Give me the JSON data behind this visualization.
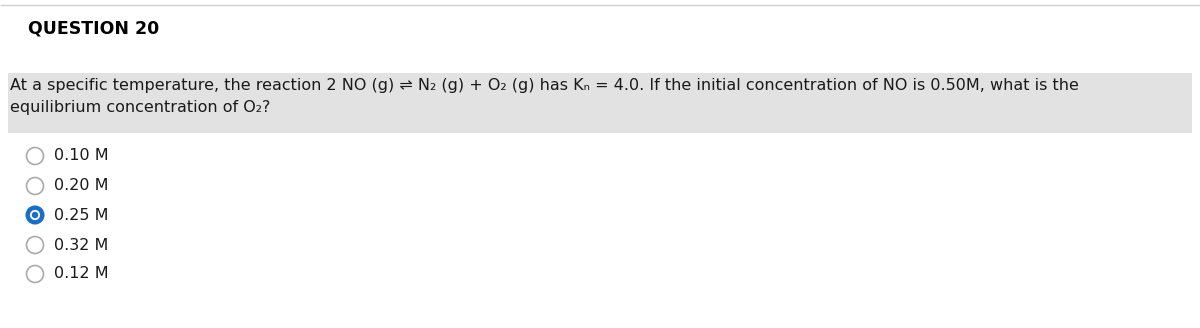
{
  "title": "QUESTION 20",
  "question_line1": "At a specific temperature, the reaction 2 NO (g) ⇌ N₂ (g) + O₂ (g) has Kₙ = 4.0. If the initial concentration of NO is 0.50M, what is the",
  "question_line2": "equilibrium concentration of O₂?",
  "options": [
    "0.10 M",
    "0.20 M",
    "0.25 M",
    "0.32 M",
    "0.12 M"
  ],
  "correct_index": 2,
  "background_color": "#ffffff",
  "highlight_color": "#e2e2e2",
  "title_color": "#000000",
  "text_color": "#1a1a1a",
  "selected_fill_color": "#1a6fc4",
  "selected_ring_color": "#1a6fc4",
  "unselected_ring_color": "#aaaaaa",
  "top_border_color": "#d0d0d0",
  "title_fontsize": 12.5,
  "question_fontsize": 11.5,
  "option_fontsize": 11.5
}
